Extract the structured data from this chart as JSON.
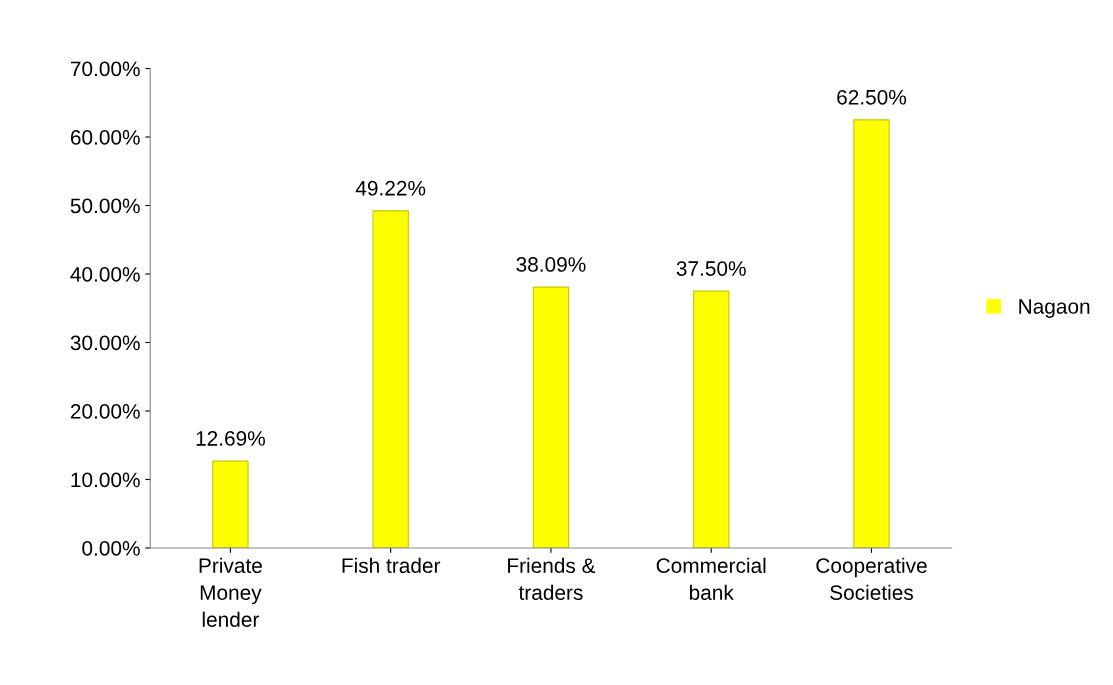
{
  "chart_data": {
    "type": "bar",
    "categories": [
      "Private\nMoney\nlender",
      "Fish trader",
      "Friends &\ntraders",
      "Commercial\nbank",
      "Cooperative\nSocieties"
    ],
    "series": [
      {
        "name": "Nagaon",
        "color": "#ffff00",
        "values": [
          12.69,
          49.22,
          38.09,
          37.5,
          62.5
        ],
        "value_labels": [
          "12.69%",
          "49.22%",
          "38.09%",
          "37.50%",
          "62.50%"
        ]
      }
    ],
    "ylim": [
      0,
      70
    ],
    "yticks": [
      {
        "value": 0,
        "label": "0.00%"
      },
      {
        "value": 10,
        "label": "10.00%"
      },
      {
        "value": 20,
        "label": "20.00%"
      },
      {
        "value": 30,
        "label": "30.00%"
      },
      {
        "value": 40,
        "label": "40.00%"
      },
      {
        "value": 50,
        "label": "50.00%"
      },
      {
        "value": 60,
        "label": "60.00%"
      },
      {
        "value": 70,
        "label": "70.00%"
      }
    ],
    "grid": false,
    "legend": "right"
  }
}
